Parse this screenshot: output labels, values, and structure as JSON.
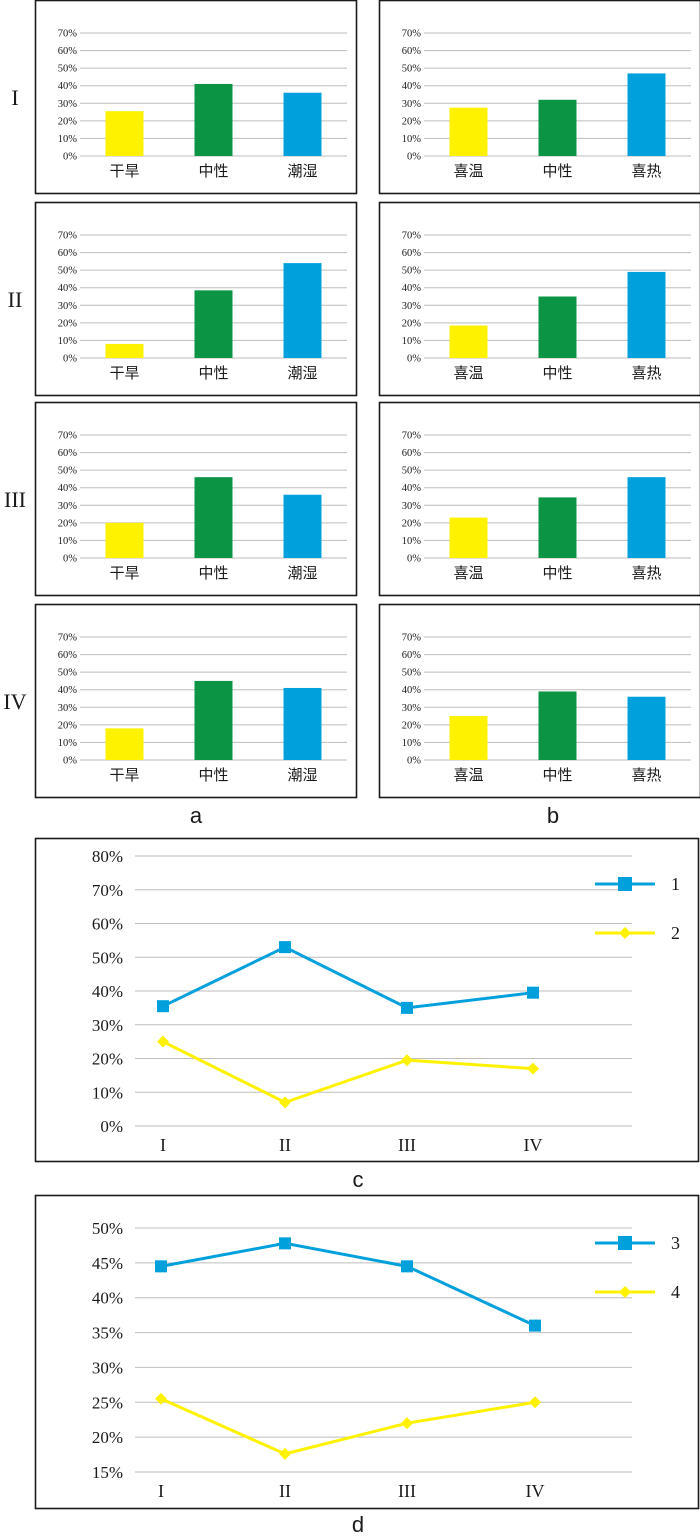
{
  "figure_labels": {
    "a": "a",
    "b": "b",
    "c": "c",
    "d": "d"
  },
  "colors": {
    "yellow": "#FFF200",
    "green": "#0A9444",
    "blue": "#00A0DC",
    "frame": "#1a1a1a",
    "grid": "#bdbdbd"
  },
  "row_labels": [
    "I",
    "II",
    "III",
    "IV"
  ],
  "chart_data": [
    {
      "id": "a-I",
      "panel": "a",
      "row": "I",
      "type": "bar",
      "categories": [
        "干旱",
        "中性",
        "潮湿"
      ],
      "values": [
        25.5,
        41,
        36
      ],
      "ylim": [
        0,
        70
      ],
      "yticks": [
        "0%",
        "10%",
        "20%",
        "30%",
        "40%",
        "50%",
        "60%",
        "70%"
      ],
      "title": "",
      "xlabel": "",
      "ylabel": ""
    },
    {
      "id": "b-I",
      "panel": "b",
      "row": "I",
      "type": "bar",
      "categories": [
        "喜温",
        "中性",
        "喜热"
      ],
      "values": [
        27.5,
        32,
        47
      ],
      "ylim": [
        0,
        70
      ],
      "yticks": [
        "0%",
        "10%",
        "20%",
        "30%",
        "40%",
        "50%",
        "60%",
        "70%"
      ],
      "title": "",
      "xlabel": "",
      "ylabel": ""
    },
    {
      "id": "a-II",
      "panel": "a",
      "row": "II",
      "type": "bar",
      "categories": [
        "干旱",
        "中性",
        "潮湿"
      ],
      "values": [
        8,
        38.5,
        54
      ],
      "ylim": [
        0,
        70
      ],
      "yticks": [
        "0%",
        "10%",
        "20%",
        "30%",
        "40%",
        "50%",
        "60%",
        "70%"
      ],
      "title": "",
      "xlabel": "",
      "ylabel": ""
    },
    {
      "id": "b-II",
      "panel": "b",
      "row": "II",
      "type": "bar",
      "categories": [
        "喜温",
        "中性",
        "喜热"
      ],
      "values": [
        18.5,
        35,
        49
      ],
      "ylim": [
        0,
        70
      ],
      "yticks": [
        "0%",
        "10%",
        "20%",
        "30%",
        "40%",
        "50%",
        "60%",
        "70%"
      ],
      "title": "",
      "xlabel": "",
      "ylabel": ""
    },
    {
      "id": "a-III",
      "panel": "a",
      "row": "III",
      "type": "bar",
      "categories": [
        "干旱",
        "中性",
        "潮湿"
      ],
      "values": [
        20,
        46,
        36
      ],
      "ylim": [
        0,
        70
      ],
      "yticks": [
        "0%",
        "10%",
        "20%",
        "30%",
        "40%",
        "50%",
        "60%",
        "70%"
      ],
      "title": "",
      "xlabel": "",
      "ylabel": ""
    },
    {
      "id": "b-III",
      "panel": "b",
      "row": "III",
      "type": "bar",
      "categories": [
        "喜温",
        "中性",
        "喜热"
      ],
      "values": [
        23,
        34.5,
        46
      ],
      "ylim": [
        0,
        70
      ],
      "yticks": [
        "0%",
        "10%",
        "20%",
        "30%",
        "40%",
        "50%",
        "60%",
        "70%"
      ],
      "title": "",
      "xlabel": "",
      "ylabel": ""
    },
    {
      "id": "a-IV",
      "panel": "a",
      "row": "IV",
      "type": "bar",
      "categories": [
        "干旱",
        "中性",
        "潮湿"
      ],
      "values": [
        18,
        45,
        41
      ],
      "ylim": [
        0,
        70
      ],
      "yticks": [
        "0%",
        "10%",
        "20%",
        "30%",
        "40%",
        "50%",
        "60%",
        "70%"
      ],
      "title": "",
      "xlabel": "",
      "ylabel": ""
    },
    {
      "id": "b-IV",
      "panel": "b",
      "row": "IV",
      "type": "bar",
      "categories": [
        "喜温",
        "中性",
        "喜热"
      ],
      "values": [
        25,
        39,
        36
      ],
      "ylim": [
        0,
        70
      ],
      "yticks": [
        "0%",
        "10%",
        "20%",
        "30%",
        "40%",
        "50%",
        "60%",
        "70%"
      ],
      "title": "",
      "xlabel": "",
      "ylabel": ""
    },
    {
      "id": "c",
      "panel": "c",
      "type": "line",
      "x": [
        "I",
        "II",
        "III",
        "IV"
      ],
      "ylim": [
        0,
        80
      ],
      "yticks": [
        "0%",
        "10%",
        "20%",
        "30%",
        "40%",
        "50%",
        "60%",
        "70%",
        "80%"
      ],
      "series": [
        {
          "name": "1",
          "values": [
            35.5,
            53,
            35,
            39.5
          ],
          "marker": "square",
          "color": "#00A0DC"
        },
        {
          "name": "2",
          "values": [
            25,
            7,
            19.5,
            17
          ],
          "marker": "diamond",
          "color": "#FFF200"
        }
      ],
      "legend": "right",
      "title": "",
      "xlabel": "",
      "ylabel": ""
    },
    {
      "id": "d",
      "panel": "d",
      "type": "line",
      "x": [
        "I",
        "II",
        "III",
        "IV"
      ],
      "ylim": [
        15,
        50
      ],
      "yticks": [
        "15%",
        "20%",
        "25%",
        "30%",
        "35%",
        "40%",
        "45%",
        "50%"
      ],
      "series": [
        {
          "name": "3",
          "values": [
            44.5,
            47.8,
            44.5,
            36
          ],
          "marker": "square",
          "color": "#00A0DC"
        },
        {
          "name": "4",
          "values": [
            25.5,
            17.6,
            22,
            25
          ],
          "marker": "diamond",
          "color": "#FFF200"
        }
      ],
      "legend": "right",
      "title": "",
      "xlabel": "",
      "ylabel": ""
    }
  ]
}
